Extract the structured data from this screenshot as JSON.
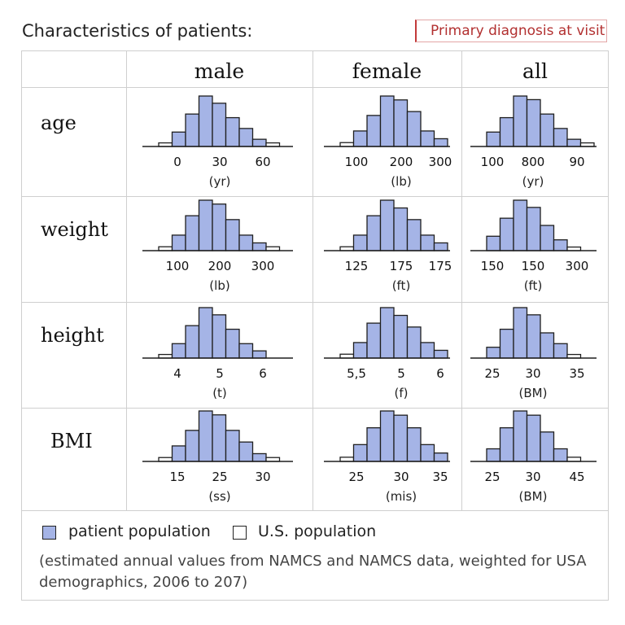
{
  "title": "Characteristics of patients:",
  "tag": "Primary diagnosis at visit",
  "columns": [
    "male",
    "female",
    "all"
  ],
  "rows": [
    "age",
    "weight",
    "height",
    "BMI"
  ],
  "colors": {
    "patient": "#a5b4e6",
    "stroke": "#1f1f1f",
    "grid": "#cfcfcf",
    "accent": "#c23a3a"
  },
  "legend": {
    "patient": "patient population",
    "us": "U.S. population"
  },
  "note": "(estimated annual values from NAMCS and NAMCS data, weighted for USA demographics, 2006 to 207)",
  "chart_data": [
    {
      "type": "bar",
      "row": "age",
      "column": "male",
      "bins": 9,
      "values": [
        1,
        4,
        9,
        14,
        12,
        8,
        5,
        2,
        1
      ],
      "ticks": [
        "0",
        "30",
        "60"
      ],
      "unit": "(yr)"
    },
    {
      "type": "bar",
      "row": "age",
      "column": "female",
      "bins": 9,
      "values": [
        1,
        4,
        8,
        13,
        12,
        9,
        4,
        2,
        0
      ],
      "ticks": [
        "100",
        "200",
        "300"
      ],
      "unit": "(lb)"
    },
    {
      "type": "bar",
      "row": "age",
      "column": "all",
      "bins": 9,
      "values": [
        4,
        8,
        14,
        13,
        9,
        5,
        2,
        1,
        0
      ],
      "ticks": [
        "100",
        "800",
        "90"
      ],
      "unit": "(yr)"
    },
    {
      "type": "bar",
      "row": "weight",
      "column": "male",
      "bins": 9,
      "values": [
        1,
        4,
        9,
        13,
        12,
        8,
        4,
        2,
        1
      ],
      "ticks": [
        "100",
        "200",
        "300"
      ],
      "unit": "(lb)"
    },
    {
      "type": "bar",
      "row": "weight",
      "column": "female",
      "bins": 9,
      "values": [
        1,
        4,
        9,
        13,
        11,
        8,
        4,
        2,
        0
      ],
      "ticks": [
        "125",
        "175",
        "175"
      ],
      "unit": "(ft)"
    },
    {
      "type": "bar",
      "row": "weight",
      "column": "all",
      "bins": 9,
      "values": [
        4,
        9,
        14,
        12,
        7,
        3,
        1,
        0,
        0
      ],
      "ticks": [
        "150",
        "150",
        "300"
      ],
      "unit": "(ft)"
    },
    {
      "type": "bar",
      "row": "height",
      "column": "male",
      "bins": 9,
      "values": [
        1,
        4,
        9,
        14,
        12,
        8,
        4,
        2,
        0
      ],
      "ticks": [
        "4",
        "5",
        "6"
      ],
      "unit": "(t)"
    },
    {
      "type": "bar",
      "row": "height",
      "column": "female",
      "bins": 9,
      "values": [
        1,
        4,
        9,
        13,
        11,
        8,
        4,
        2,
        0
      ],
      "ticks": [
        "5,5",
        "5",
        "6"
      ],
      "unit": "(f)"
    },
    {
      "type": "bar",
      "row": "height",
      "column": "all",
      "bins": 9,
      "values": [
        3,
        8,
        14,
        12,
        7,
        4,
        1,
        0,
        0
      ],
      "ticks": [
        "25",
        "30",
        "35"
      ],
      "unit": "(BM)"
    },
    {
      "type": "bar",
      "row": "BMI",
      "column": "male",
      "bins": 9,
      "values": [
        1,
        4,
        8,
        13,
        12,
        8,
        5,
        2,
        1
      ],
      "ticks": [
        "15",
        "25",
        "30"
      ],
      "unit": "(ss)"
    },
    {
      "type": "bar",
      "row": "BMI",
      "column": "female",
      "bins": 9,
      "values": [
        1,
        4,
        8,
        12,
        11,
        8,
        4,
        2,
        0
      ],
      "ticks": [
        "25",
        "30",
        "35"
      ],
      "unit": "(mis)"
    },
    {
      "type": "bar",
      "row": "BMI",
      "column": "all",
      "bins": 9,
      "values": [
        3,
        8,
        12,
        11,
        7,
        3,
        1,
        0,
        0
      ],
      "ticks": [
        "25",
        "30",
        "45"
      ],
      "unit": "(BM)"
    }
  ]
}
